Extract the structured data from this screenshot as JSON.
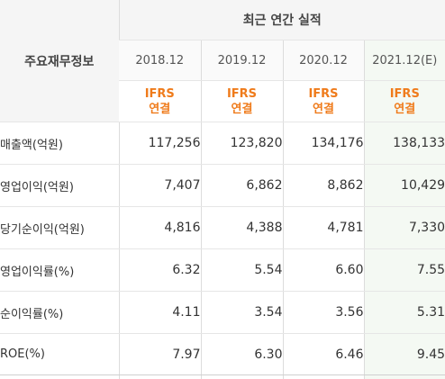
{
  "table": {
    "corner_label": "주요재무정보",
    "group_header": "최근 연간 실적",
    "years": [
      "2018.12",
      "2019.12",
      "2020.12",
      "2021.12(E)"
    ],
    "basis": [
      {
        "line1": "IFRS",
        "line2": "연결"
      },
      {
        "line1": "IFRS",
        "line2": "연결"
      },
      {
        "line1": "IFRS",
        "line2": "연결"
      },
      {
        "line1": "IFRS",
        "line2": "연결"
      }
    ],
    "rows": [
      {
        "label": "매출액(억원)",
        "values": [
          "117,256",
          "123,820",
          "134,176",
          "138,133"
        ]
      },
      {
        "label": "영업이익(억원)",
        "values": [
          "7,407",
          "6,862",
          "8,862",
          "10,429"
        ]
      },
      {
        "label": "당기순이익(억원)",
        "values": [
          "4,816",
          "4,388",
          "4,781",
          "7,330"
        ]
      },
      {
        "label": "영업이익률(%)",
        "values": [
          "6.32",
          "5.54",
          "6.60",
          "7.55"
        ]
      },
      {
        "label": "순이익률(%)",
        "values": [
          "4.11",
          "3.54",
          "3.56",
          "5.31"
        ]
      },
      {
        "label": "ROE(%)",
        "values": [
          "7.97",
          "6.30",
          "6.46",
          "9.45"
        ]
      }
    ]
  },
  "colors": {
    "ifrs_accent": "#ef7b1b",
    "estimate_column_bg": "#f4f9f3",
    "header_bg": "#f5f5f5"
  }
}
